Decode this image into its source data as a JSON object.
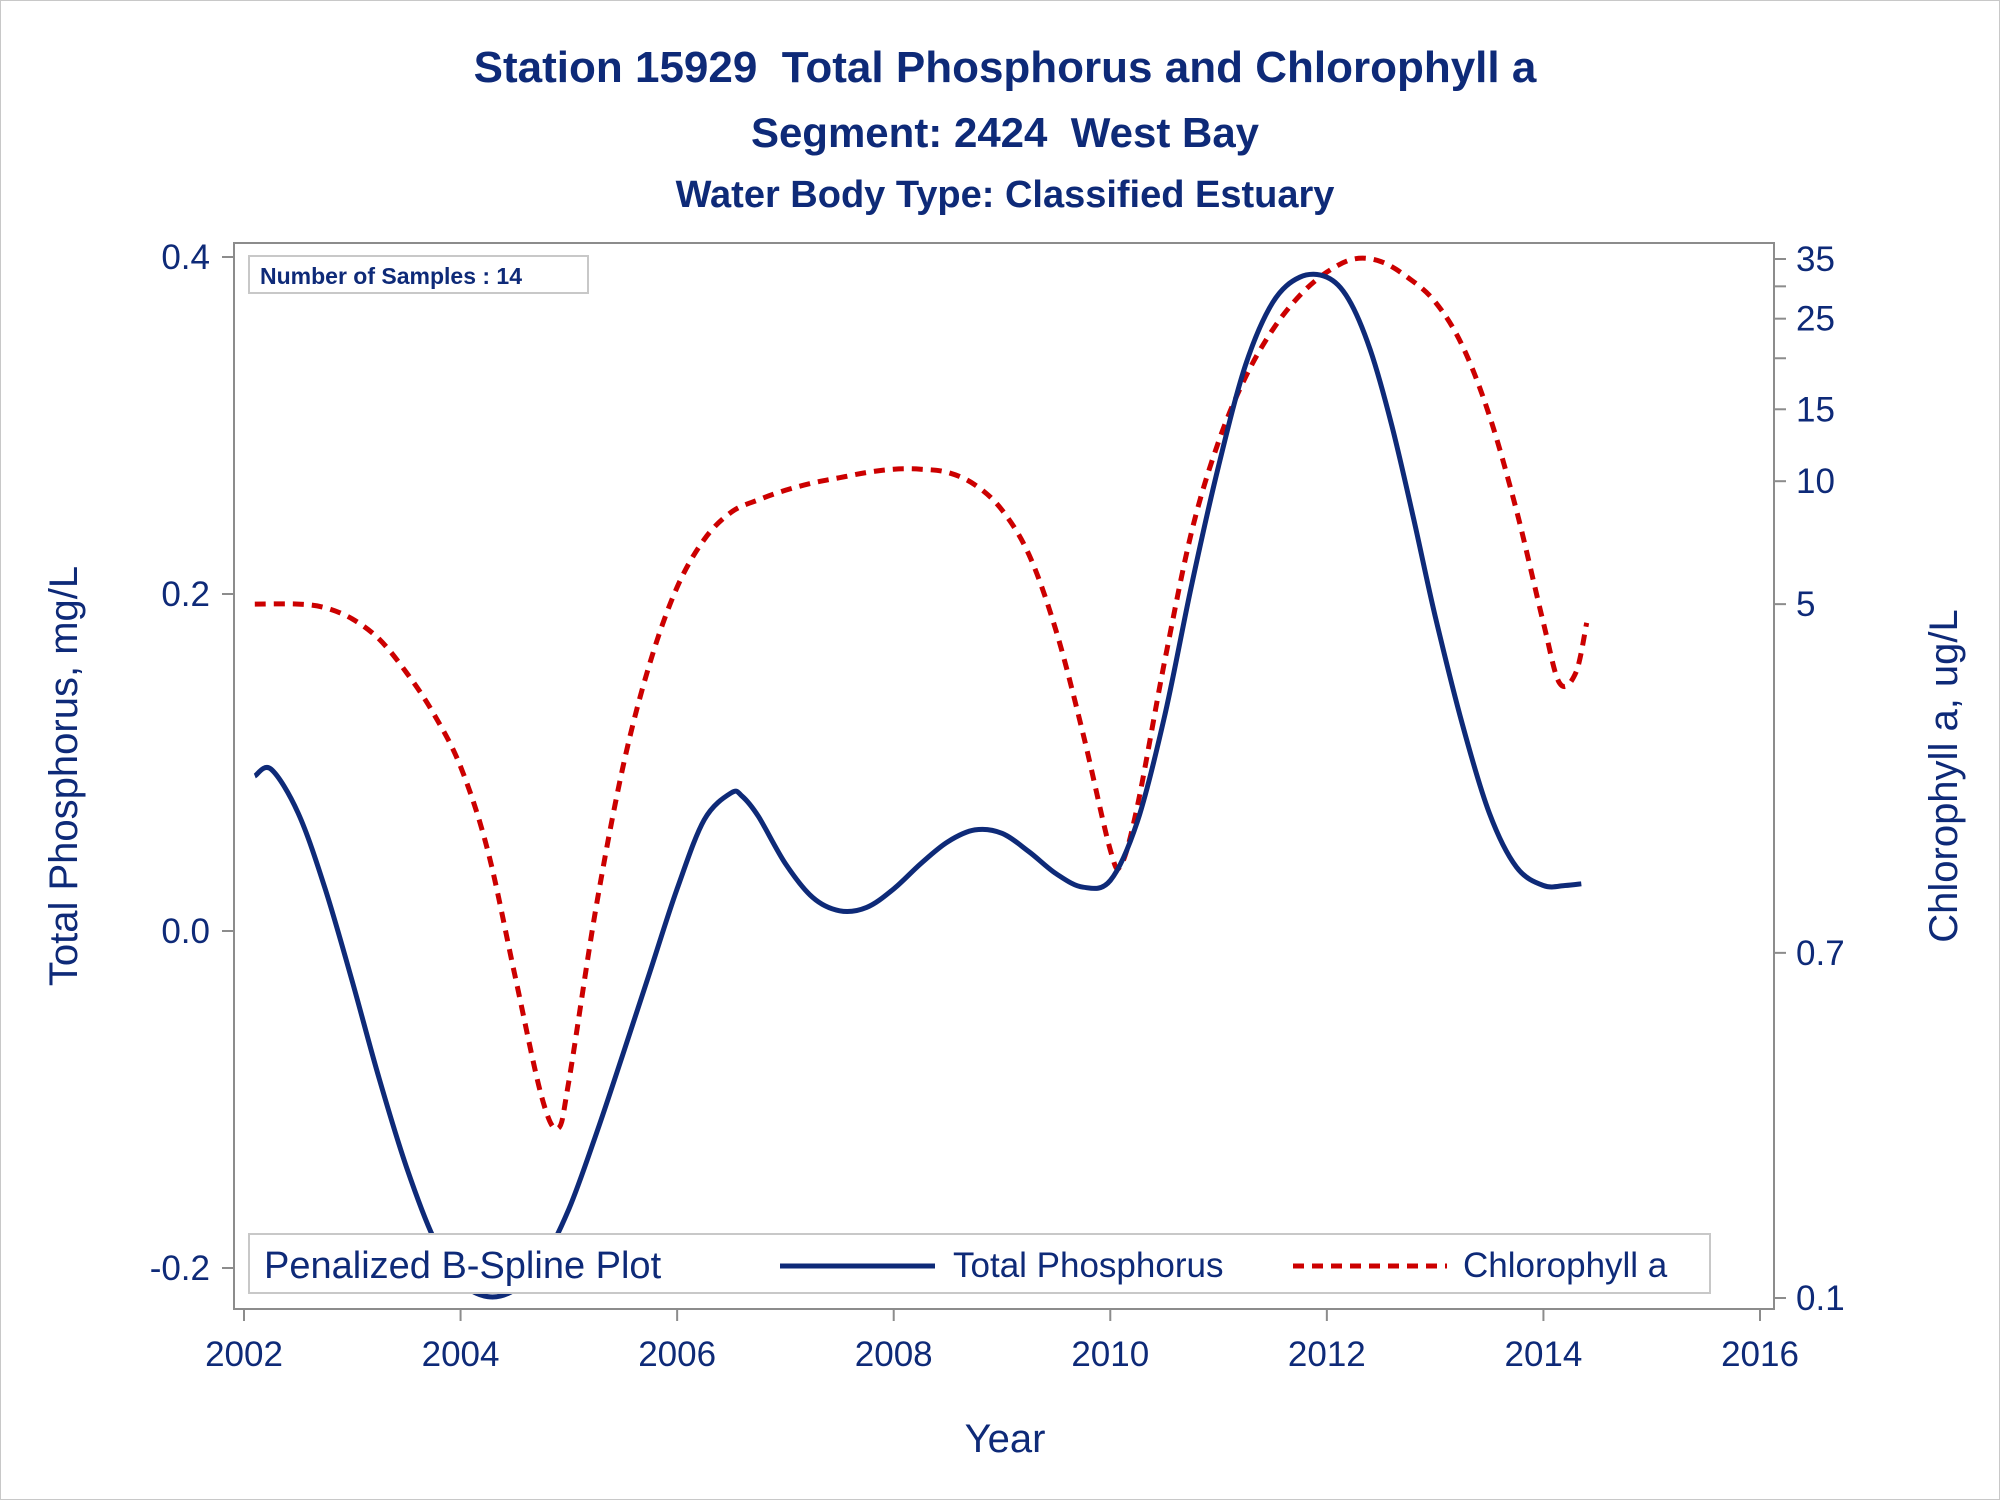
{
  "chart_data": {
    "type": "line",
    "title": "Station 15929  Total Phosphorus and Chlorophyll a",
    "subtitle": "Segment: 2424  West Bay",
    "subtitle2": "Water Body Type: Classified Estuary",
    "xlabel": "Year",
    "ylabel": "Total Phosphorus, mg/L",
    "y2label": "Chlorophyll a, ug/L",
    "xlim": [
      2002,
      2016
    ],
    "ylim": [
      -0.2,
      0.4
    ],
    "y2lim": [
      0.1,
      35
    ],
    "y2scale": "log",
    "x_ticks": [
      "2002",
      "2004",
      "2006",
      "2008",
      "2010",
      "2012",
      "2014",
      "2016"
    ],
    "x_tick_values": [
      2002,
      2004,
      2006,
      2008,
      2010,
      2012,
      2014,
      2016
    ],
    "y_ticks": [
      "-0.2",
      "0.0",
      "0.2",
      "0.4"
    ],
    "y_tick_values": [
      -0.2,
      0.0,
      0.2,
      0.4
    ],
    "y2_ticks": [
      "0.1",
      "0.7",
      "5",
      "10",
      "15",
      "25",
      "35"
    ],
    "y2_tick_values": [
      0.1,
      0.7,
      5,
      10,
      15,
      25,
      35
    ],
    "y2_minor_ticks": [
      20,
      30
    ],
    "grid": false,
    "annotation": "Number of Samples : 14",
    "legend": {
      "placement": "bottom-inside",
      "title": "Penalized B-Spline Plot",
      "entries": [
        "Total Phosphorus",
        "Chlorophyll a"
      ]
    },
    "series": [
      {
        "name": "Total Phosphorus",
        "axis": "left",
        "color": "#0e2a78",
        "style": "solid",
        "x": [
          2002.1,
          2002.25,
          2002.5,
          2002.75,
          2003.0,
          2003.25,
          2003.5,
          2003.75,
          2004.0,
          2004.25,
          2004.5,
          2004.75,
          2005.0,
          2005.25,
          2005.5,
          2005.75,
          2006.0,
          2006.25,
          2006.5,
          2006.6,
          2006.75,
          2007.0,
          2007.25,
          2007.5,
          2007.75,
          2008.0,
          2008.25,
          2008.5,
          2008.75,
          2009.0,
          2009.25,
          2009.5,
          2009.75,
          2010.0,
          2010.25,
          2010.5,
          2010.75,
          2011.0,
          2011.25,
          2011.5,
          2011.75,
          2012.0,
          2012.2,
          2012.4,
          2012.6,
          2012.8,
          2013.0,
          2013.25,
          2013.5,
          2013.75,
          2014.0,
          2014.2,
          2014.35
        ],
        "values": [
          0.092,
          0.096,
          0.07,
          0.025,
          -0.03,
          -0.088,
          -0.14,
          -0.182,
          -0.208,
          -0.217,
          -0.213,
          -0.197,
          -0.165,
          -0.121,
          -0.073,
          -0.024,
          0.025,
          0.066,
          0.082,
          0.08,
          0.068,
          0.04,
          0.02,
          0.012,
          0.014,
          0.025,
          0.04,
          0.053,
          0.06,
          0.058,
          0.047,
          0.034,
          0.026,
          0.03,
          0.065,
          0.127,
          0.205,
          0.276,
          0.336,
          0.373,
          0.388,
          0.388,
          0.375,
          0.345,
          0.3,
          0.245,
          0.187,
          0.123,
          0.07,
          0.038,
          0.027,
          0.027,
          0.028
        ]
      },
      {
        "name": "Chlorophyll a",
        "axis": "right",
        "color": "#cc0000",
        "style": "dashed",
        "x": [
          2002.1,
          2002.5,
          2002.75,
          2003.0,
          2003.25,
          2003.5,
          2003.75,
          2004.0,
          2004.25,
          2004.5,
          2004.75,
          2004.9,
          2005.0,
          2005.25,
          2005.5,
          2005.75,
          2006.0,
          2006.25,
          2006.5,
          2006.75,
          2007.0,
          2007.25,
          2007.5,
          2007.75,
          2008.0,
          2008.25,
          2008.5,
          2008.75,
          2009.0,
          2009.25,
          2009.5,
          2009.75,
          2010.0,
          2010.1,
          2010.25,
          2010.5,
          2010.75,
          2011.0,
          2011.25,
          2011.5,
          2011.75,
          2012.0,
          2012.25,
          2012.5,
          2012.75,
          2013.0,
          2013.25,
          2013.5,
          2013.75,
          2014.0,
          2014.15,
          2014.3,
          2014.4
        ],
        "values": [
          5.0,
          5.0,
          4.9,
          4.6,
          4.1,
          3.4,
          2.7,
          2.0,
          1.25,
          0.62,
          0.31,
          0.26,
          0.34,
          0.9,
          2.0,
          3.6,
          5.5,
          7.2,
          8.4,
          9.0,
          9.5,
          9.9,
          10.2,
          10.5,
          10.7,
          10.7,
          10.5,
          9.8,
          8.5,
          6.6,
          4.3,
          2.4,
          1.25,
          1.15,
          1.6,
          3.6,
          7.5,
          12.5,
          18.0,
          23.5,
          28.5,
          32.5,
          35.0,
          34.5,
          31.5,
          27.5,
          21.5,
          14.5,
          8.5,
          4.5,
          3.2,
          3.4,
          4.5
        ]
      }
    ]
  },
  "colors": {
    "text": "#0e2a78",
    "phosphorus": "#0e2a78",
    "chlorophyll": "#cc0000",
    "axis": "#8c8c8c",
    "frame": "#c8c8c8"
  }
}
